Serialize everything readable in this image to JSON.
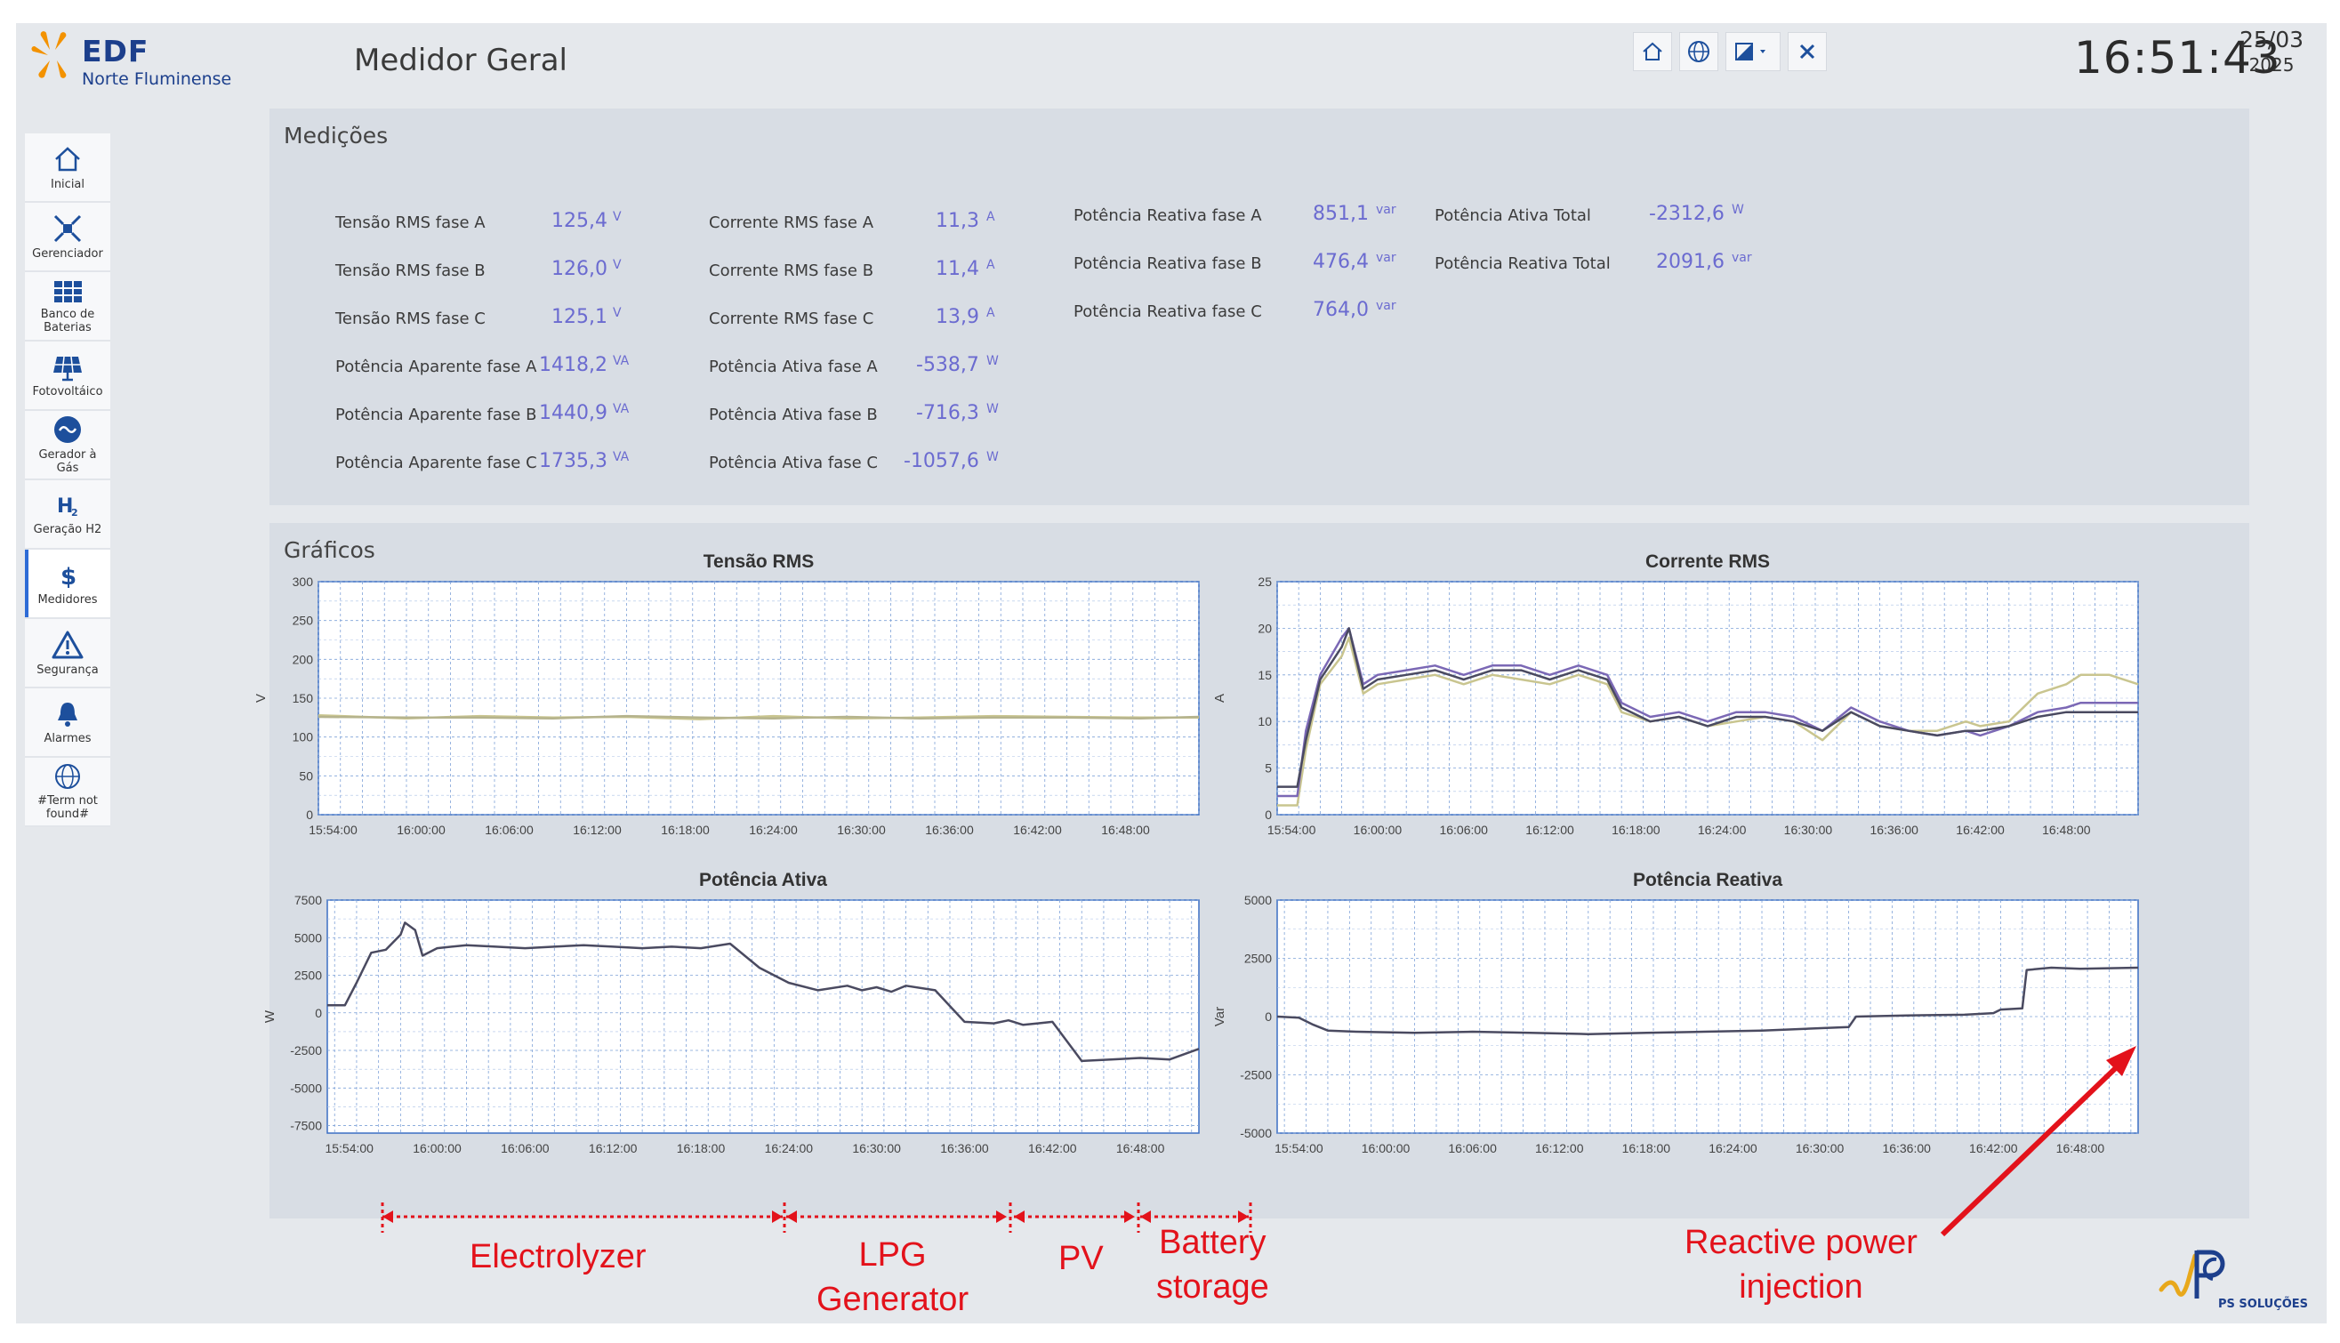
{
  "header": {
    "brand": "EDF",
    "brand_sub": "Norte Fluminense",
    "title": "Medidor Geral",
    "toolbar": [
      "home-icon",
      "globe-icon",
      "contrast-dropdown-icon",
      "close-icon"
    ],
    "clock": "16:51:43",
    "date_day": "25/03",
    "date_year": "2025"
  },
  "sidebar": {
    "items": [
      {
        "label": "Inicial",
        "icon": "home-icon"
      },
      {
        "label": "Gerenciador",
        "icon": "network-icon"
      },
      {
        "label": "Banco de\nBaterias",
        "icon": "battery-bank-icon"
      },
      {
        "label": "Fotovoltáico",
        "icon": "solar-panel-icon"
      },
      {
        "label": "Gerador à\nGás",
        "icon": "gas-generator-icon"
      },
      {
        "label": "Geração H2",
        "icon": "h2-icon"
      },
      {
        "label": "Medidores",
        "icon": "dollar-icon",
        "active": true
      },
      {
        "label": "Segurança",
        "icon": "warning-icon"
      },
      {
        "label": "Alarmes",
        "icon": "bell-icon"
      },
      {
        "label": "#Term not\nfound#",
        "icon": "globe-icon"
      }
    ]
  },
  "medicoes": {
    "title": "Medições",
    "items": [
      {
        "label": "Tensão RMS fase A",
        "value": "125,4",
        "unit": "V"
      },
      {
        "label": "Tensão RMS fase B",
        "value": "126,0",
        "unit": "V"
      },
      {
        "label": "Tensão RMS fase C",
        "value": "125,1",
        "unit": "V"
      },
      {
        "label": "Potência Aparente fase A",
        "value": "1418,2",
        "unit": "VA"
      },
      {
        "label": "Potência Aparente fase B",
        "value": "1440,9",
        "unit": "VA"
      },
      {
        "label": "Potência Aparente fase C",
        "value": "1735,3",
        "unit": "VA"
      },
      {
        "label": "Corrente RMS fase A",
        "value": "11,3",
        "unit": "A"
      },
      {
        "label": "Corrente RMS fase B",
        "value": "11,4",
        "unit": "A"
      },
      {
        "label": "Corrente RMS fase C",
        "value": "13,9",
        "unit": "A"
      },
      {
        "label": "Potência Ativa fase A",
        "value": "-538,7",
        "unit": "W"
      },
      {
        "label": "Potência Ativa fase B",
        "value": "-716,3",
        "unit": "W"
      },
      {
        "label": "Potência Ativa fase C",
        "value": "-1057,6",
        "unit": "W"
      },
      {
        "label": "Potência Reativa fase A",
        "value": "851,1",
        "unit": "var"
      },
      {
        "label": "Potência Reativa fase B",
        "value": "476,4",
        "unit": "var"
      },
      {
        "label": "Potência Reativa fase C",
        "value": "764,0",
        "unit": "var"
      },
      {
        "label": "Potência Ativa Total",
        "value": "-2312,6",
        "unit": "W"
      },
      {
        "label": "Potência Reativa Total",
        "value": "2091,6",
        "unit": "var"
      }
    ]
  },
  "graficos": {
    "title": "Gráficos"
  },
  "chart_data": [
    {
      "type": "line",
      "title": "Tensão RMS",
      "ylabel": "V",
      "ylim": [
        0,
        300
      ],
      "yticks": [
        0,
        50,
        100,
        150,
        200,
        250,
        300
      ],
      "xticks": [
        "15:54:00",
        "16:00:00",
        "16:06:00",
        "16:12:00",
        "16:18:00",
        "16:24:00",
        "16:30:00",
        "16:36:00",
        "16:42:00",
        "16:48:00"
      ],
      "xrange_min": [
        -1,
        59
      ],
      "series": [
        {
          "color": "#c9c58f",
          "x": [
            -1,
            5,
            10,
            15,
            20,
            25,
            30,
            35,
            40,
            45,
            50,
            55,
            59
          ],
          "y": [
            128,
            124,
            127,
            125,
            126,
            123,
            127,
            124,
            125,
            127,
            126,
            125,
            125
          ]
        },
        {
          "color": "#b5b38d",
          "x": [
            -1,
            5,
            10,
            15,
            20,
            25,
            30,
            35,
            40,
            45,
            50,
            55,
            59
          ],
          "y": [
            126,
            125,
            125,
            124,
            127,
            125,
            124,
            126,
            124,
            125,
            125,
            124,
            126
          ]
        }
      ]
    },
    {
      "type": "line",
      "title": "Corrente RMS",
      "ylabel": "A",
      "ylim": [
        0,
        25
      ],
      "yticks": [
        0,
        5,
        10,
        15,
        20,
        25
      ],
      "xticks": [
        "15:54:00",
        "16:00:00",
        "16:06:00",
        "16:12:00",
        "16:18:00",
        "16:24:00",
        "16:30:00",
        "16:36:00",
        "16:42:00",
        "16:48:00"
      ],
      "xrange_min": [
        -1,
        59
      ],
      "series": [
        {
          "color": "#c9c58f",
          "x": [
            -1,
            0.4,
            1,
            2,
            3.5,
            4,
            5,
            6,
            8,
            10,
            12,
            14,
            16,
            18,
            20,
            22,
            23,
            25,
            27,
            29,
            31,
            33,
            35,
            37,
            39,
            41,
            43,
            45,
            47,
            48,
            50,
            52,
            54,
            55,
            57,
            59
          ],
          "y": [
            1,
            1,
            7,
            14,
            17,
            19,
            13,
            14,
            14.5,
            15,
            14,
            15,
            14.5,
            14,
            15,
            14,
            11,
            10,
            10.5,
            9.5,
            10,
            10.5,
            10,
            8,
            11,
            9.5,
            9,
            9,
            10,
            9.5,
            10,
            13,
            14,
            15,
            15,
            14
          ]
        },
        {
          "color": "#7b68b5",
          "x": [
            -1,
            0.4,
            1,
            2,
            3.5,
            4,
            5,
            6,
            8,
            10,
            12,
            14,
            16,
            18,
            20,
            22,
            23,
            25,
            27,
            29,
            31,
            33,
            35,
            37,
            39,
            41,
            43,
            45,
            47,
            48,
            50,
            52,
            54,
            55,
            57,
            59
          ],
          "y": [
            2,
            2,
            9,
            15,
            19,
            20,
            14,
            15,
            15.5,
            16,
            15,
            16,
            16,
            15,
            16,
            15,
            12,
            10.5,
            11,
            10,
            11,
            11,
            10.5,
            9,
            11.5,
            10,
            9,
            8.5,
            9,
            8.5,
            9.5,
            11,
            11.5,
            12,
            12,
            12
          ]
        },
        {
          "color": "#4a4a60",
          "x": [
            -1,
            0.4,
            1,
            2,
            3.5,
            4,
            5,
            6,
            8,
            10,
            12,
            14,
            16,
            18,
            20,
            22,
            23,
            25,
            27,
            29,
            31,
            33,
            35,
            37,
            39,
            41,
            43,
            45,
            47,
            48,
            50,
            52,
            54,
            55,
            57,
            59
          ],
          "y": [
            3,
            3,
            8,
            14.5,
            18,
            20,
            13.5,
            14.5,
            15,
            15.5,
            14.5,
            15.5,
            15.5,
            14.5,
            15.5,
            14.5,
            11.5,
            10,
            10.5,
            9.5,
            10.5,
            10.5,
            10,
            9,
            11,
            9.5,
            9,
            8.5,
            9,
            9,
            9.5,
            10.5,
            11,
            11,
            11,
            11
          ]
        }
      ]
    },
    {
      "type": "line",
      "title": "Potência Ativa",
      "ylabel": "W",
      "ylim": [
        -8000,
        7500
      ],
      "yticks": [
        -7500,
        -5000,
        -2500,
        0,
        2500,
        5000,
        7500
      ],
      "xticks": [
        "15:54:00",
        "16:00:00",
        "16:06:00",
        "16:12:00",
        "16:18:00",
        "16:24:00",
        "16:30:00",
        "16:36:00",
        "16:42:00",
        "16:48:00"
      ],
      "xrange_min": [
        -1.5,
        58
      ],
      "series": [
        {
          "color": "#4a4a60",
          "x": [
            -1.5,
            -0.3,
            0.5,
            1.5,
            2.5,
            3.5,
            3.8,
            4.5,
            5,
            6,
            8,
            10,
            12,
            14,
            16,
            18,
            20,
            22,
            24,
            26,
            28,
            30,
            32,
            34,
            35,
            36,
            37,
            38,
            40,
            42,
            44,
            45,
            46,
            47,
            48,
            50,
            52,
            54,
            56,
            58
          ],
          "y": [
            500,
            500,
            2000,
            4000,
            4200,
            5200,
            6000,
            5500,
            3800,
            4300,
            4500,
            4400,
            4300,
            4400,
            4500,
            4400,
            4300,
            4400,
            4300,
            4600,
            3000,
            2000,
            1500,
            1800,
            1500,
            1700,
            1400,
            1800,
            1500,
            -600,
            -700,
            -500,
            -800,
            -700,
            -600,
            -3200,
            -3100,
            -3000,
            -3100,
            -2400
          ]
        }
      ]
    },
    {
      "type": "line",
      "title": "Potência Reativa",
      "ylabel": "Var",
      "ylim": [
        -5000,
        5000
      ],
      "yticks": [
        -5000,
        -2500,
        0,
        2500,
        5000
      ],
      "xticks": [
        "15:54:00",
        "16:00:00",
        "16:06:00",
        "16:12:00",
        "16:18:00",
        "16:24:00",
        "16:30:00",
        "16:36:00",
        "16:42:00",
        "16:48:00"
      ],
      "xrange_min": [
        -1.5,
        58
      ],
      "series": [
        {
          "color": "#4a4a60",
          "x": [
            -1.5,
            0,
            1,
            2,
            4,
            8,
            12,
            16,
            20,
            24,
            28,
            32,
            38,
            38.5,
            42,
            46,
            48,
            48.5,
            50,
            50.3,
            52,
            54,
            58
          ],
          "y": [
            0,
            -50,
            -350,
            -600,
            -650,
            -700,
            -650,
            -700,
            -750,
            -700,
            -650,
            -600,
            -450,
            0,
            50,
            80,
            150,
            300,
            350,
            2000,
            2100,
            2050,
            2100
          ]
        }
      ]
    }
  ],
  "annotations": {
    "electrolyzer": "Electrolyzer",
    "lpg": "LPG\nGenerator",
    "pv": "PV",
    "battery": "Battery\nstorage",
    "reactive": "Reactive power\ninjection"
  },
  "footer": {
    "ps_label": "PS SOLUÇÕES"
  }
}
